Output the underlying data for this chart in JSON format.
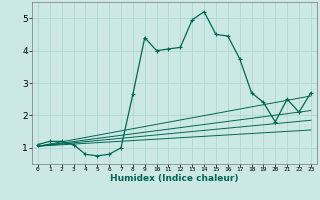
{
  "xlabel": "Humidex (Indice chaleur)",
  "ylabel": "",
  "bg_color": "#cce8e4",
  "grid_color": "#b0d8d0",
  "line_color": "#006655",
  "xlim": [
    -0.5,
    23.5
  ],
  "ylim": [
    0.5,
    5.5
  ],
  "yticks": [
    1,
    2,
    3,
    4,
    5
  ],
  "xticks": [
    0,
    1,
    2,
    3,
    4,
    5,
    6,
    7,
    8,
    9,
    10,
    11,
    12,
    13,
    14,
    15,
    16,
    17,
    18,
    19,
    20,
    21,
    22,
    23
  ],
  "main_series_x": [
    0,
    1,
    2,
    3,
    4,
    5,
    6,
    7,
    8,
    9,
    10,
    11,
    12,
    13,
    14,
    15,
    16,
    17,
    18,
    19,
    20,
    21,
    22,
    23
  ],
  "main_series_y": [
    1.1,
    1.2,
    1.2,
    1.1,
    0.8,
    0.75,
    0.8,
    1.0,
    2.65,
    4.4,
    4.0,
    4.05,
    4.1,
    4.95,
    5.2,
    4.5,
    4.45,
    3.75,
    2.7,
    2.4,
    1.8,
    2.5,
    2.1,
    2.7
  ],
  "line1_x": [
    0,
    23
  ],
  "line1_y": [
    1.05,
    1.55
  ],
  "line2_x": [
    0,
    23
  ],
  "line2_y": [
    1.05,
    1.85
  ],
  "line3_x": [
    0,
    23
  ],
  "line3_y": [
    1.05,
    2.15
  ],
  "line4_x": [
    0,
    23
  ],
  "line4_y": [
    1.05,
    2.6
  ]
}
